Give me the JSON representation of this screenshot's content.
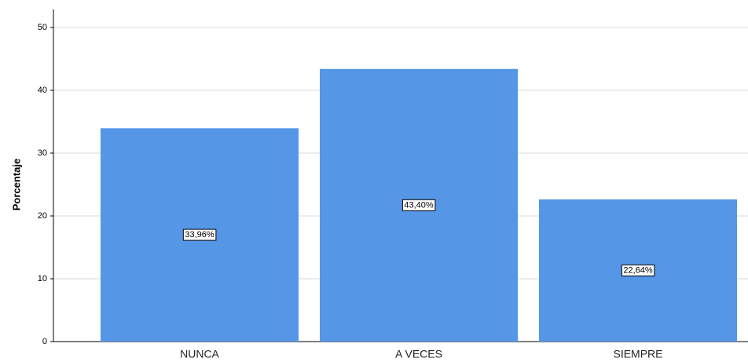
{
  "chart_data": {
    "type": "bar",
    "y_label": "Porcentaje",
    "categories": [
      "NUNCA",
      "A VECES",
      "SIEMPRE"
    ],
    "values": [
      33.96,
      43.4,
      22.64
    ],
    "value_labels": [
      "33,96%",
      "43,40%",
      "22,64%"
    ],
    "color": "#5596e6",
    "ylim": [
      0,
      50
    ],
    "yticks": [
      0,
      10,
      20,
      30,
      40,
      50
    ],
    "grid": true
  }
}
